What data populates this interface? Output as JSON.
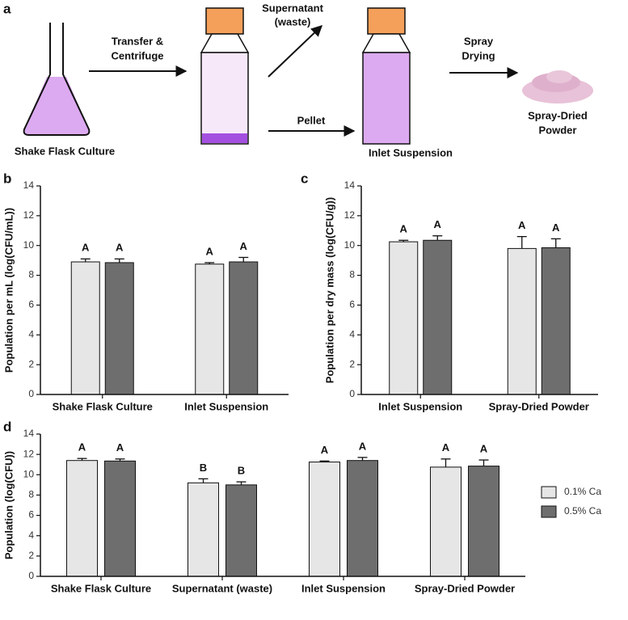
{
  "diagram": {
    "panel": "a",
    "transfer": [
      "Transfer &",
      "Centrifuge"
    ],
    "supernatant": [
      "Supernatant",
      "(waste)"
    ],
    "pellet": "Pellet",
    "spray": [
      "Spray",
      "Drying"
    ],
    "flask": "Shake Flask Culture",
    "inlet": "Inlet Suspension",
    "powder": [
      "Spray-Dried",
      "Powder"
    ]
  },
  "chart_data": [
    {
      "type": "bar",
      "label": "b",
      "y_label": "Population per mL (log(CFU/mL))",
      "categories": [
        "Shake Flask Culture",
        "Inlet Suspension"
      ],
      "series": [
        {
          "color": "#e6e6e6",
          "values": [
            8.9,
            8.75
          ],
          "errors": [
            0.2,
            0.1
          ],
          "letters": [
            "A",
            "A"
          ]
        },
        {
          "color": "#6e6e6e",
          "values": [
            8.85,
            8.9
          ],
          "errors": [
            0.25,
            0.3
          ],
          "letters": [
            "A",
            "A"
          ]
        }
      ],
      "ylim": [
        0,
        14
      ],
      "yticks": [
        0,
        2,
        4,
        6,
        8,
        10,
        12,
        14
      ]
    },
    {
      "type": "bar",
      "label": "c",
      "y_label": "Population per dry mass (log(CFU/g))",
      "categories": [
        "Inlet Suspension",
        "Spray-Dried Powder"
      ],
      "series": [
        {
          "color": "#e6e6e6",
          "values": [
            10.25,
            9.8
          ],
          "errors": [
            0.1,
            0.8
          ],
          "letters": [
            "A",
            "A"
          ]
        },
        {
          "color": "#6e6e6e",
          "values": [
            10.35,
            9.85
          ],
          "errors": [
            0.3,
            0.6
          ],
          "letters": [
            "A",
            "A"
          ]
        }
      ],
      "ylim": [
        0,
        14
      ],
      "yticks": [
        0,
        2,
        4,
        6,
        8,
        10,
        12,
        14
      ]
    },
    {
      "type": "bar",
      "label": "d",
      "y_label": "Population (log(CFU))",
      "categories": [
        "Shake Flask Culture",
        "Supernatant (waste)",
        "Inlet Suspension",
        "Spray-Dried Powder"
      ],
      "series": [
        {
          "name": "0.1% Ca",
          "color": "#e6e6e6",
          "values": [
            11.4,
            9.2,
            11.25,
            10.75
          ],
          "errors": [
            0.2,
            0.4,
            0.1,
            0.8
          ],
          "letters": [
            "A",
            "B",
            "A",
            "A"
          ]
        },
        {
          "name": "0.5% Ca",
          "color": "#6e6e6e",
          "values": [
            11.35,
            9.0,
            11.4,
            10.85
          ],
          "errors": [
            0.2,
            0.3,
            0.3,
            0.6
          ],
          "letters": [
            "A",
            "B",
            "A",
            "A"
          ]
        }
      ],
      "ylim": [
        0,
        14
      ],
      "yticks": [
        0,
        2,
        4,
        6,
        8,
        10,
        12,
        14
      ],
      "legend": "right"
    }
  ]
}
